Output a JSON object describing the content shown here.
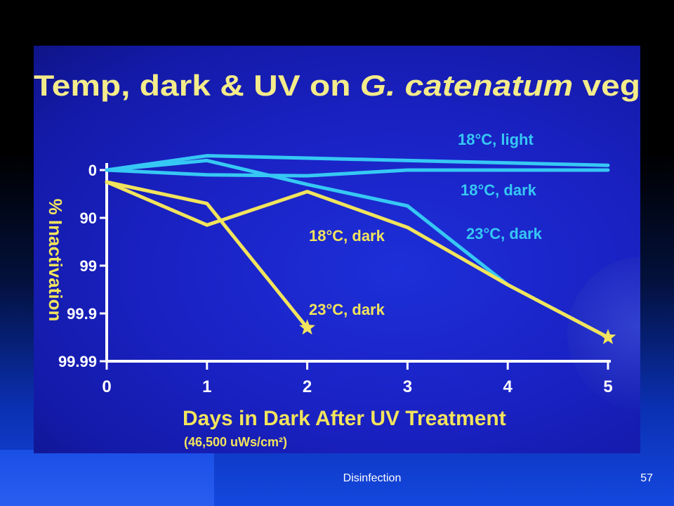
{
  "footer": {
    "title": "Disinfection",
    "page_number": "57"
  },
  "chart_data": {
    "type": "line",
    "title_parts": [
      "Temp, dark & UV on ",
      "G. catenatum",
      " veg"
    ],
    "xlabel": "Days in Dark After UV Treatment",
    "xlabel_sub": "(46,500 uWs/cm²)",
    "ylabel": "% Inactivation",
    "x_ticks": [
      "0",
      "1",
      "2",
      "3",
      "4",
      "5"
    ],
    "y_ticks": [
      "0",
      "90",
      "99",
      "99.9",
      "99.99"
    ],
    "xlim": [
      0,
      5
    ],
    "y_scale": "log-reduction",
    "ylim": [
      0,
      4
    ],
    "colors": {
      "cyan": "#36c8f4",
      "yellow": "#f2e45c",
      "title": "#f4ec8a",
      "axis": "#ffffff"
    },
    "series": [
      {
        "name": "18°C, light",
        "color": "#36c8f4",
        "label": "18°C, light",
        "x": [
          0,
          1,
          2,
          3,
          4,
          5
        ],
        "y": [
          0,
          -0.3,
          -0.25,
          -0.2,
          -0.15,
          -0.1
        ]
      },
      {
        "name": "18°C, dark",
        "color": "#36c8f4",
        "label": "18°C, dark",
        "x": [
          0,
          1,
          2,
          3,
          4,
          5
        ],
        "y": [
          0,
          0.1,
          0.12,
          0.0,
          0.0,
          0.0
        ]
      },
      {
        "name": "23°C, dark",
        "color": "#36c8f4",
        "label": "23°C, dark",
        "x": [
          0,
          1,
          2,
          3,
          4,
          5
        ],
        "y": [
          0,
          -0.2,
          0.3,
          0.75,
          2.4,
          3.5
        ]
      },
      {
        "name": "18°C, dark",
        "color": "#f2e45c",
        "label": "18°C, dark",
        "x": [
          0,
          1,
          2,
          3,
          4,
          5
        ],
        "y": [
          0.25,
          1.15,
          0.45,
          1.2,
          2.4,
          3.5
        ]
      },
      {
        "name": "23°C, dark",
        "color": "#f2e45c",
        "label": "23°C, dark",
        "x": [
          0,
          1,
          2
        ],
        "y": [
          0.25,
          0.7,
          3.3
        ]
      }
    ],
    "markers": [
      {
        "type": "star",
        "x": 2,
        "y": 3.3,
        "color": "#f2e45c"
      },
      {
        "type": "star",
        "x": 5,
        "y": 3.5,
        "color": "#f2e45c"
      }
    ]
  }
}
